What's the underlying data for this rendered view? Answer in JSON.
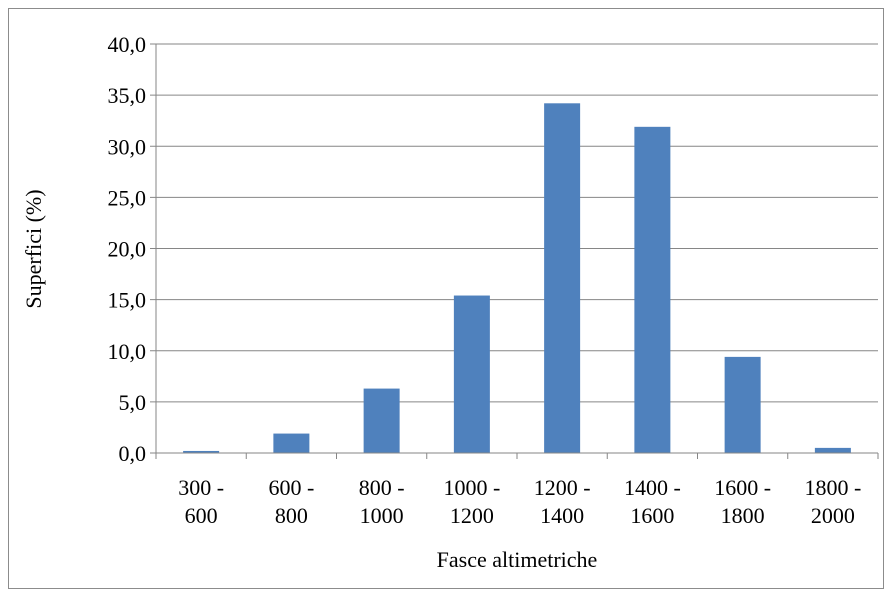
{
  "chart_data": {
    "type": "bar",
    "title": "",
    "xlabel": "Fasce altimetriche",
    "ylabel": "Superfici (%)",
    "categories": [
      [
        "300 -",
        "600"
      ],
      [
        "600 -",
        "800"
      ],
      [
        "800  -",
        "1000"
      ],
      [
        "1000 -",
        "1200"
      ],
      [
        "1200 -",
        "1400"
      ],
      [
        "1400 -",
        "1600"
      ],
      [
        "1600 -",
        "1800"
      ],
      [
        "1800 -",
        "2000"
      ]
    ],
    "values": [
      0.2,
      1.9,
      6.3,
      15.4,
      34.2,
      31.9,
      9.4,
      0.5
    ],
    "ylim": [
      0,
      40
    ],
    "yticks": [
      "0,0",
      "5,0",
      "10,0",
      "15,0",
      "20,0",
      "25,0",
      "30,0",
      "35,0",
      "40,0"
    ],
    "grid": true,
    "legend": "none",
    "bar_color": "#4f81bd",
    "grid_color": "#868686"
  }
}
